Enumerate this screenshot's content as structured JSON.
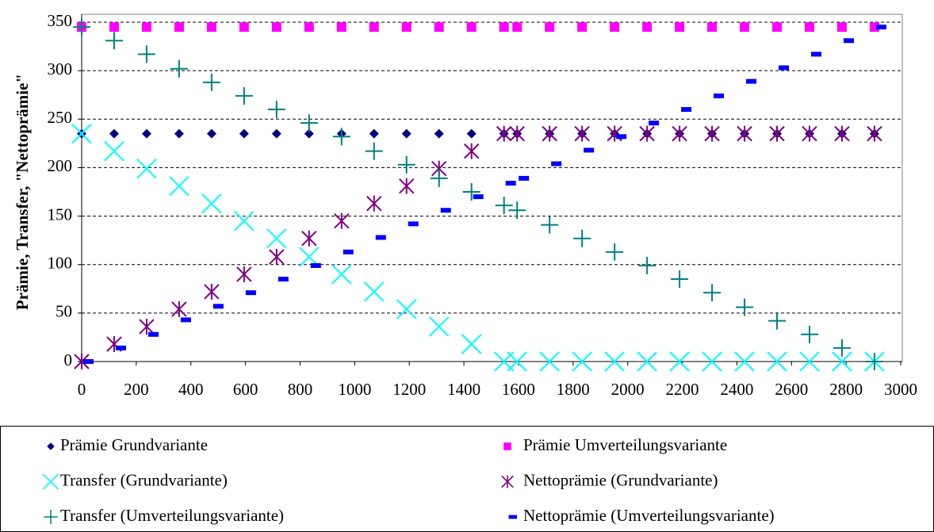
{
  "chart_data": {
    "type": "scatter",
    "ylabel": "Prämie, Transfer, \"Nettoprämie\"",
    "x": [
      0,
      119,
      238,
      357,
      476,
      595,
      714,
      833,
      952,
      1071,
      1190,
      1309,
      1428,
      1547,
      1595,
      1714,
      1833,
      1952,
      2071,
      2190,
      2309,
      2428,
      2547,
      2666,
      2785,
      2904
    ],
    "series": [
      {
        "name": "Prämie Grundvariante",
        "color": "#000080",
        "marker": "diamond",
        "values": [
          235,
          235,
          235,
          235,
          235,
          235,
          235,
          235,
          235,
          235,
          235,
          235,
          235,
          235,
          235,
          235,
          235,
          235,
          235,
          235,
          235,
          235,
          235,
          235,
          235,
          235
        ]
      },
      {
        "name": "Prämie Umverteilungsvariante",
        "color": "#ff00ff",
        "marker": "square",
        "values": [
          345,
          345,
          345,
          345,
          345,
          345,
          345,
          345,
          345,
          345,
          345,
          345,
          345,
          345,
          345,
          345,
          345,
          345,
          345,
          345,
          345,
          345,
          345,
          345,
          345,
          345
        ]
      },
      {
        "name": "Transfer (Grundvariante)",
        "color": "#00ffff",
        "marker": "x",
        "values": [
          235,
          217,
          199,
          181,
          163,
          145,
          127,
          108,
          90,
          72,
          54,
          36,
          18,
          0,
          0,
          0,
          0,
          0,
          0,
          0,
          0,
          0,
          0,
          0,
          0,
          0
        ]
      },
      {
        "name": "Nettoprämie (Grundvariante)",
        "color": "#800080",
        "marker": "asterisk",
        "values": [
          0,
          18,
          36,
          54,
          72,
          90,
          108,
          127,
          145,
          163,
          181,
          199,
          217,
          235,
          235,
          235,
          235,
          235,
          235,
          235,
          235,
          235,
          235,
          235,
          235,
          235
        ]
      },
      {
        "name": "Transfer (Umverteilungsvariante)",
        "color": "#008080",
        "marker": "plus",
        "values": [
          345,
          331,
          317,
          302,
          288,
          274,
          260,
          246,
          232,
          217,
          203,
          189,
          175,
          161,
          156,
          141,
          127,
          113,
          99,
          85,
          71,
          56,
          42,
          28,
          14,
          0
        ]
      },
      {
        "name": "Nettoprämie (Umverteilungsvariante)",
        "color": "#0000ff",
        "marker": "dash",
        "values": [
          0,
          14,
          28,
          43,
          57,
          71,
          85,
          99,
          113,
          128,
          142,
          156,
          170,
          184,
          189,
          204,
          218,
          232,
          246,
          260,
          274,
          289,
          303,
          317,
          331,
          345
        ]
      }
    ],
    "xlim": [
      0,
      3000
    ],
    "xticks": [
      0,
      200,
      400,
      600,
      800,
      1000,
      1200,
      1400,
      1600,
      1800,
      2000,
      2200,
      2400,
      2600,
      2800,
      3000
    ],
    "ylim": [
      0,
      350
    ],
    "yticks": [
      0,
      50,
      100,
      150,
      200,
      250,
      300,
      350
    ],
    "grid": true
  }
}
